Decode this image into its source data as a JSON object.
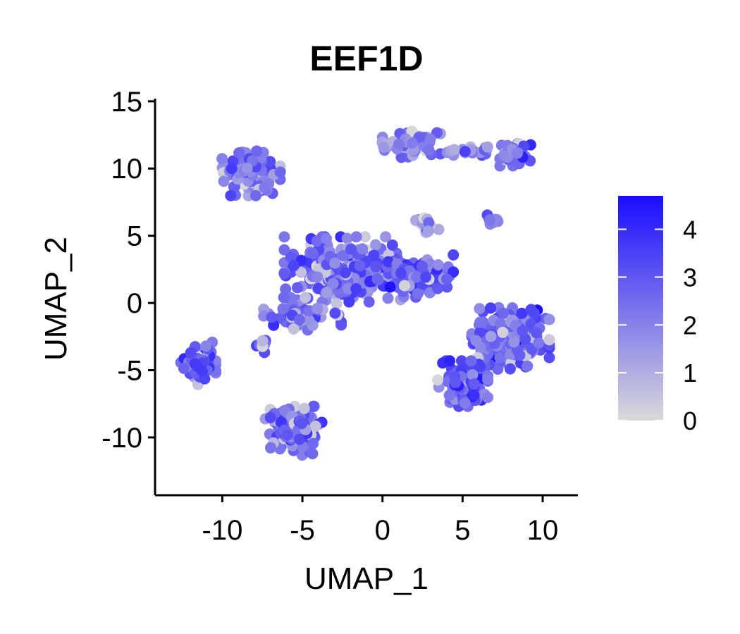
{
  "chart_data": {
    "type": "scatter",
    "title": "EEF1D",
    "xlabel": "UMAP_1",
    "ylabel": "UMAP_2",
    "xlim": [
      -14.2,
      12.2
    ],
    "ylim": [
      -14.3,
      15.2
    ],
    "x_ticks": [
      -10,
      -5,
      0,
      5,
      10
    ],
    "x_tick_labels": [
      "-10",
      "-5",
      "0",
      "5",
      "10"
    ],
    "y_ticks": [
      -10,
      -5,
      0,
      5,
      10,
      15
    ],
    "y_tick_labels": [
      "-10",
      "-5",
      "0",
      "5",
      "10",
      "15"
    ],
    "colorbar": {
      "range": [
        0,
        4.7
      ],
      "ticks": [
        0,
        1,
        2,
        3,
        4
      ],
      "tick_labels": [
        "0",
        "1",
        "2",
        "3",
        "4"
      ],
      "low_color": "#d9d9d9",
      "high_color": "#1a0dff"
    },
    "grid": false,
    "legend_position": "right",
    "clusters": [
      {
        "center": [
          -8.2,
          9.8
        ],
        "spread": [
          1.5,
          1.5
        ],
        "mean_expr": 2.3,
        "count": 130
      },
      {
        "center": [
          1.8,
          11.8
        ],
        "spread": [
          1.5,
          0.8
        ],
        "mean_expr": 2.1,
        "count": 80
      },
      {
        "center": [
          5.5,
          11.3
        ],
        "spread": [
          1.4,
          0.25
        ],
        "mean_expr": 2.2,
        "count": 22
      },
      {
        "center": [
          8.3,
          11.0
        ],
        "spread": [
          0.8,
          0.7
        ],
        "mean_expr": 2.6,
        "count": 35
      },
      {
        "center": [
          2.8,
          5.8
        ],
        "spread": [
          0.6,
          0.6
        ],
        "mean_expr": 1.4,
        "count": 22
      },
      {
        "center": [
          7.0,
          6.2
        ],
        "spread": [
          0.5,
          0.35
        ],
        "mean_expr": 2.6,
        "count": 10
      },
      {
        "center": [
          -2.5,
          2.5
        ],
        "spread": [
          3.0,
          2.0
        ],
        "mean_expr": 2.7,
        "count": 300
      },
      {
        "center": [
          2.0,
          2.0
        ],
        "spread": [
          2.0,
          1.3
        ],
        "mean_expr": 3.0,
        "count": 120
      },
      {
        "center": [
          -5.0,
          -0.8
        ],
        "spread": [
          2.0,
          1.0
        ],
        "mean_expr": 2.6,
        "count": 70
      },
      {
        "center": [
          -7.5,
          -3.2
        ],
        "spread": [
          0.5,
          0.4
        ],
        "mean_expr": 2.4,
        "count": 12
      },
      {
        "center": [
          -11.5,
          -4.5
        ],
        "spread": [
          0.9,
          1.3
        ],
        "mean_expr": 2.8,
        "count": 80
      },
      {
        "center": [
          -5.5,
          -9.5
        ],
        "spread": [
          1.5,
          1.5
        ],
        "mean_expr": 2.4,
        "count": 140
      },
      {
        "center": [
          8.0,
          -2.5
        ],
        "spread": [
          2.0,
          2.0
        ],
        "mean_expr": 2.7,
        "count": 240
      },
      {
        "center": [
          5.0,
          -6.0
        ],
        "spread": [
          1.3,
          1.4
        ],
        "mean_expr": 2.9,
        "count": 130
      }
    ]
  }
}
